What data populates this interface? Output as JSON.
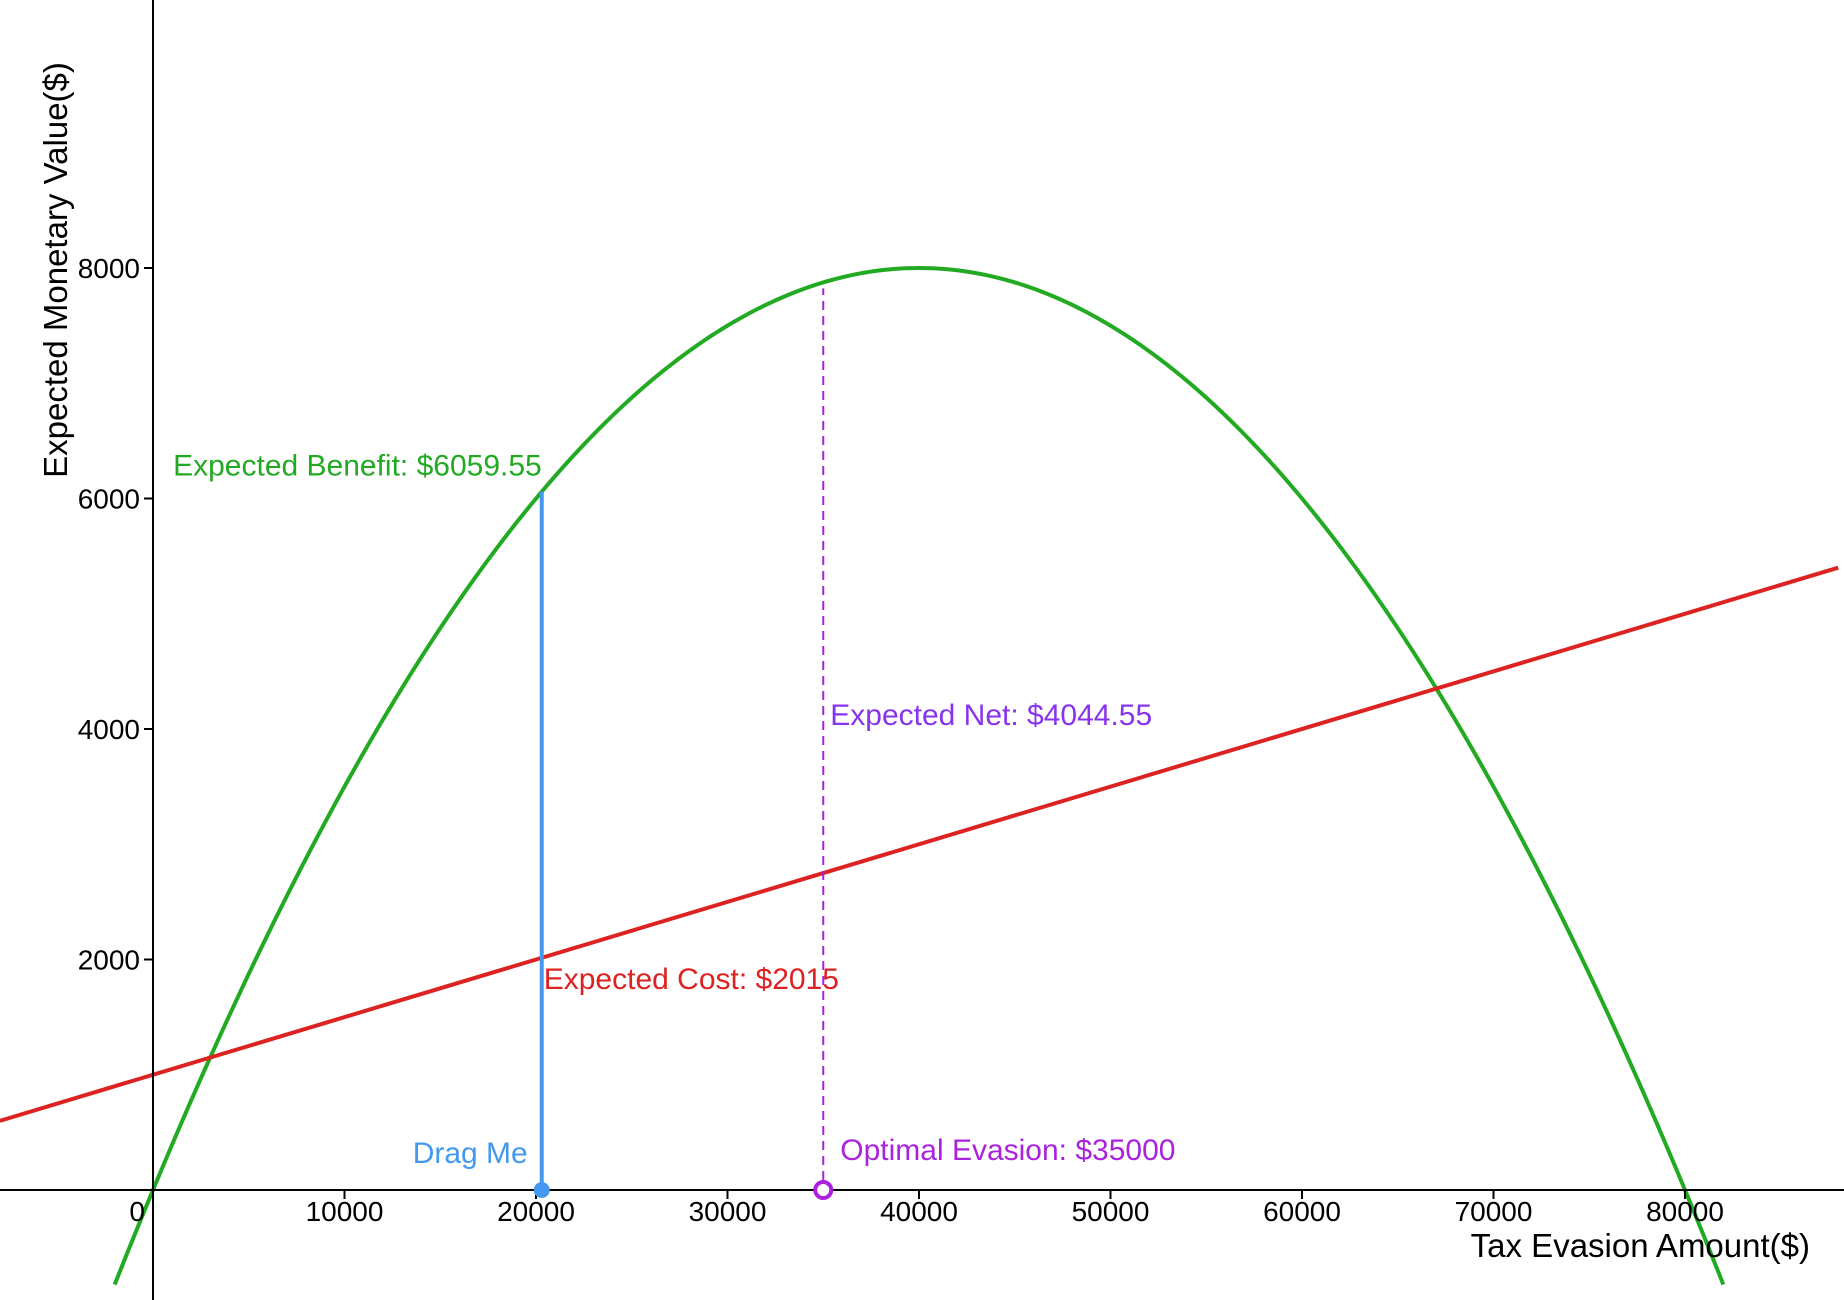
{
  "chart_data": {
    "type": "line",
    "xlabel": "Tax Evasion Amount($)",
    "ylabel": "Expected Monetary Value($)",
    "xlim": [
      -8000,
      88000
    ],
    "ylim": [
      -800,
      8800
    ],
    "x_ticks": [
      0,
      10000,
      20000,
      30000,
      40000,
      50000,
      60000,
      70000,
      80000
    ],
    "y_ticks": [
      2000,
      4000,
      6000,
      8000
    ],
    "x_tick_labels": [
      "0",
      "10000",
      "20000",
      "30000",
      "40000",
      "50000",
      "60000",
      "70000",
      "80000"
    ],
    "y_tick_labels": [
      "2000",
      "4000",
      "6000",
      "8000"
    ],
    "series": [
      {
        "kind": "expected-benefit-curve",
        "color": "#22aa22",
        "formula": "y = 0.4x - 0.000005x^2",
        "x": [
          -2000,
          0,
          5000,
          10000,
          15000,
          20000,
          25000,
          30000,
          35000,
          40000,
          45000,
          50000,
          55000,
          60000,
          65000,
          70000,
          75000,
          80000,
          82000
        ],
        "y": [
          -820,
          0,
          1875,
          3500,
          4875,
          6000,
          6875,
          7500,
          7875,
          8000,
          7875,
          7500,
          6875,
          6000,
          4875,
          3500,
          1875,
          0,
          -820
        ]
      },
      {
        "kind": "expected-cost-line",
        "color": "#dd2222",
        "formula": "y = 1000 + 0.05x",
        "x": [
          -8000,
          88000
        ],
        "y": [
          600,
          5400
        ]
      }
    ],
    "drag_point": {
      "x": 20300,
      "label": "Drag Me",
      "color": "#4499ee"
    },
    "optimal_point": {
      "x": 35000,
      "label": "Optimal Evasion: $35000",
      "color": "#aa22dd"
    },
    "annotations": {
      "benefit": {
        "text": "Expected Benefit: $6059.55",
        "color": "#22aa22",
        "value": 6059.55
      },
      "cost": {
        "text": "Expected Cost: $2015",
        "color": "#dd2222",
        "value": 2015
      },
      "net": {
        "text": "Expected Net: $4044.55",
        "color": "#8833ee",
        "value": 4044.55
      }
    }
  }
}
